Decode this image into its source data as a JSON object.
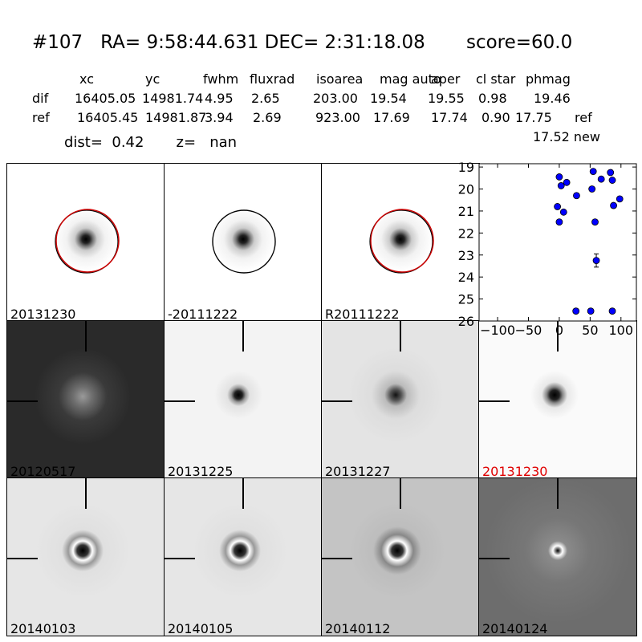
{
  "header": {
    "title": "#107   RA= 9:58:44.631 DEC= 2:31:18.08       score=60.0",
    "dist_line": "dist=  0.42       z=   nan",
    "new_mag": "17.52 new"
  },
  "stats_table": {
    "columns": [
      "xc",
      "yc",
      "fwhm",
      "fluxrad",
      "isoarea",
      "mag auto",
      "aper",
      "cl star",
      "phmag"
    ],
    "rows": [
      {
        "label": "dif",
        "values": [
          "16405.05",
          "14981.74",
          "4.95",
          "2.65",
          "203.00",
          "19.54",
          "19.55",
          "0.98",
          "19.46"
        ],
        "extra": ""
      },
      {
        "label": "ref",
        "values": [
          "16405.45",
          "14981.87",
          "3.94",
          "2.69",
          "923.00",
          "17.69",
          "17.74",
          "0.90",
          "17.75"
        ],
        "extra": "ref"
      }
    ]
  },
  "panels": [
    {
      "label": "20131230",
      "kind": "star_circle",
      "color": "red"
    },
    {
      "label": "-20111222",
      "kind": "star_circle",
      "color": "black"
    },
    {
      "label": "R20111222",
      "kind": "star_circle",
      "color": "red"
    },
    {
      "label": "20120517",
      "kind": "noisy_dark"
    },
    {
      "label": "20131225",
      "kind": "cutout"
    },
    {
      "label": "20131227",
      "kind": "cutout_noisy"
    },
    {
      "label": "20131230",
      "kind": "cutout_clean",
      "highlight": true
    },
    {
      "label": "20140103",
      "kind": "dipole"
    },
    {
      "label": "20140105",
      "kind": "dipole"
    },
    {
      "label": "20140112",
      "kind": "dipole_gray"
    },
    {
      "label": "20140124",
      "kind": "dipole_darkgray"
    }
  ],
  "colors": {
    "marker": "#0000ff",
    "highlight_label": "#e00000",
    "circle_red": "#cc0000",
    "circle_black": "#000000"
  },
  "chart_data": {
    "type": "scatter",
    "title": "",
    "xlabel": "",
    "ylabel": "",
    "xlim": [
      -130,
      125
    ],
    "ylim": [
      26,
      18.85
    ],
    "y_inverted": true,
    "xticks": [
      -100,
      -50,
      0,
      50,
      100
    ],
    "yticks": [
      19,
      20,
      21,
      22,
      23,
      24,
      25,
      26
    ],
    "grid": false,
    "series": [
      {
        "name": "",
        "marker": "circle",
        "x": [
          0,
          3,
          12,
          28,
          53,
          55,
          68,
          83,
          86,
          88,
          98,
          -3,
          7,
          0,
          58,
          60,
          27,
          51,
          86
        ],
        "y": [
          19.45,
          19.85,
          19.7,
          20.3,
          20.0,
          19.2,
          19.55,
          19.25,
          19.6,
          20.75,
          20.45,
          20.8,
          21.05,
          21.5,
          21.5,
          23.25,
          25.55,
          25.55,
          25.55
        ],
        "yerr": [
          0,
          0,
          0,
          0,
          0,
          0,
          0,
          0,
          0,
          0,
          0,
          0,
          0,
          0,
          0,
          0.3,
          0.1,
          0.1,
          0.1
        ]
      }
    ]
  }
}
